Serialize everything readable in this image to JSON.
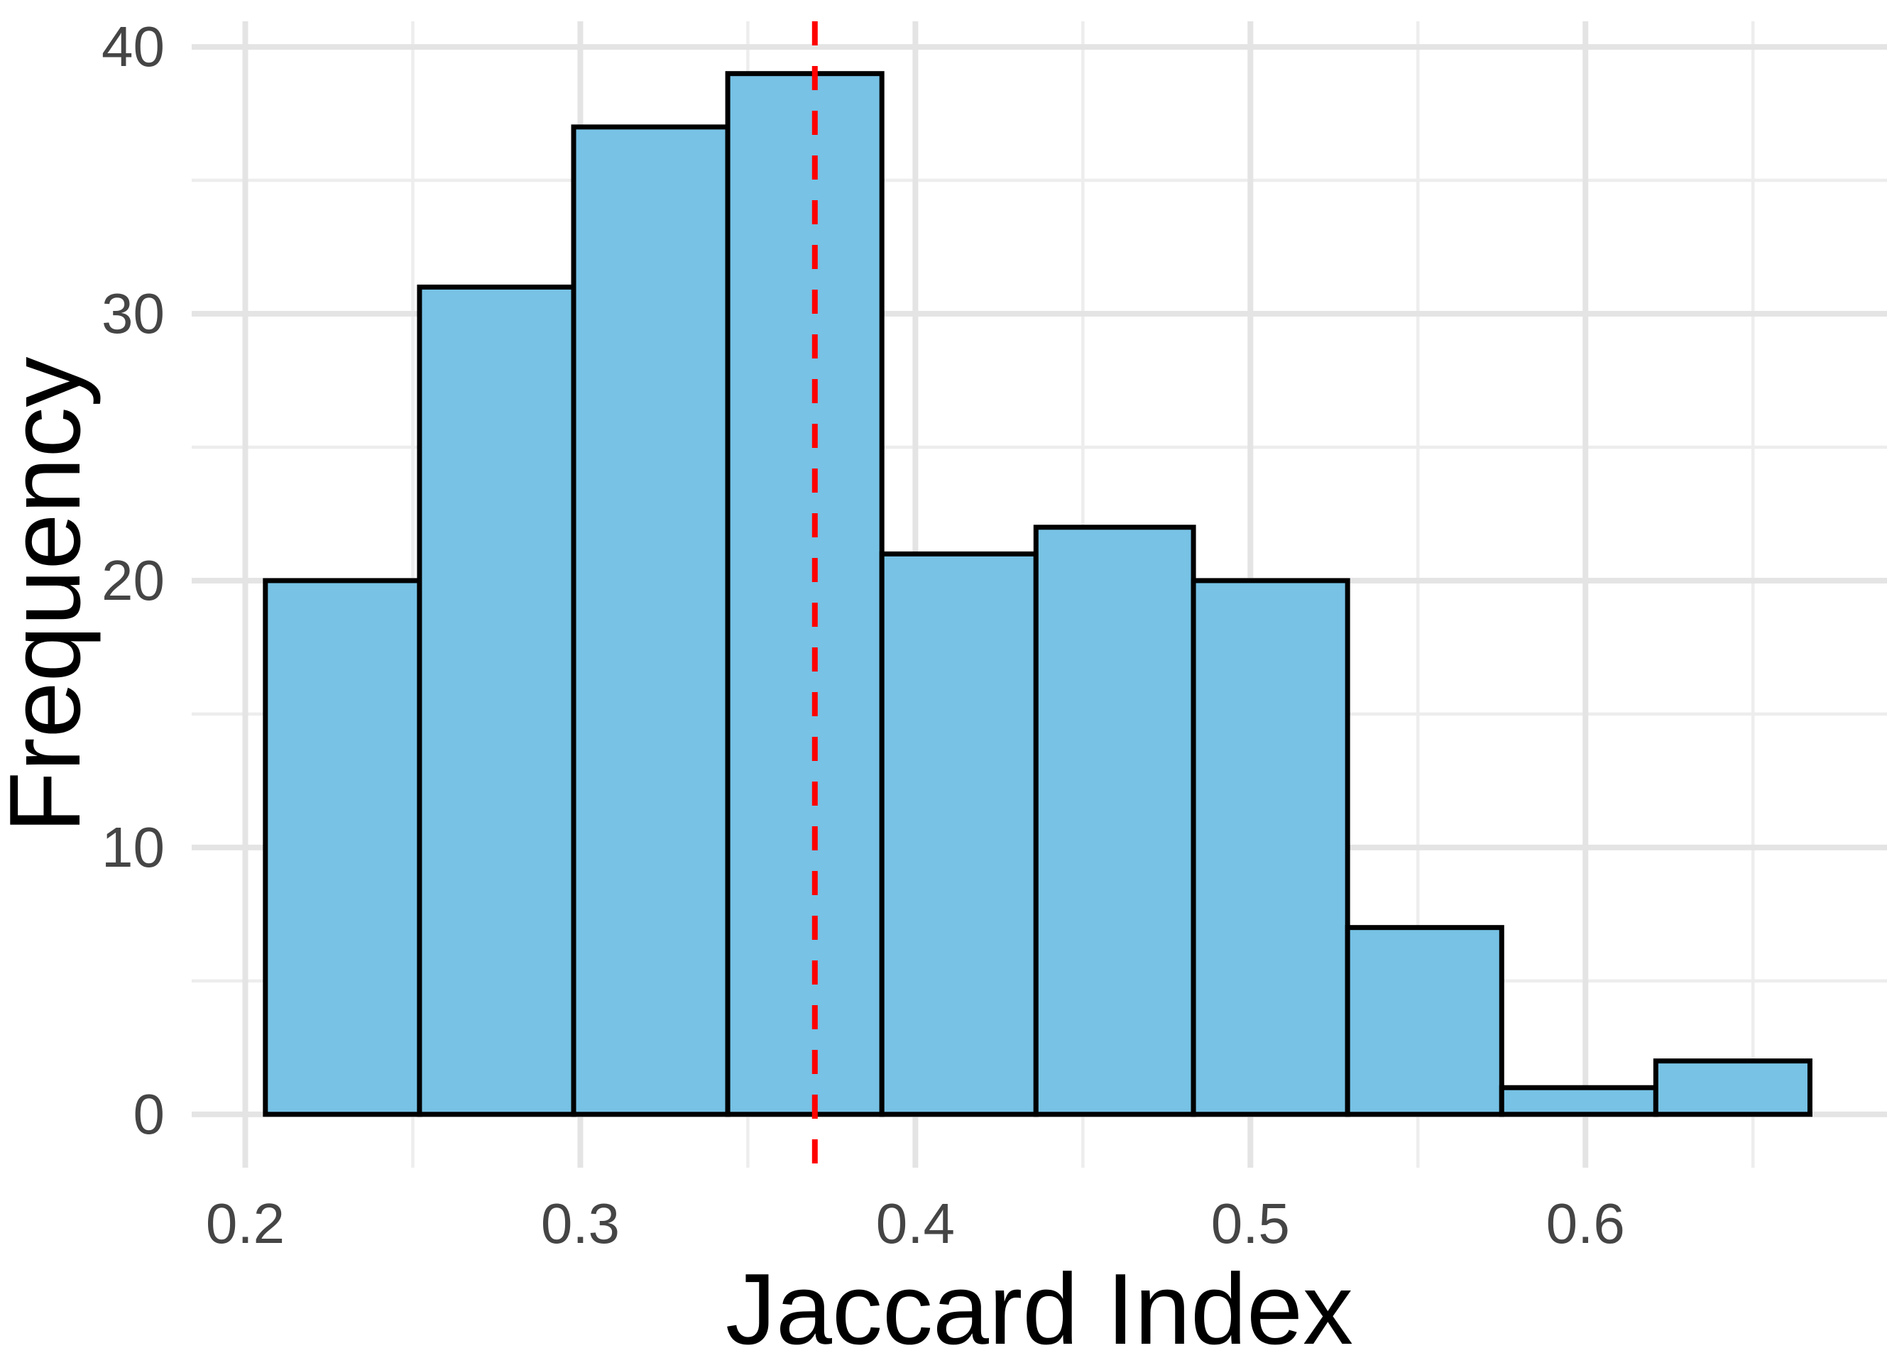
{
  "chart_data": {
    "type": "bar",
    "subtype": "histogram",
    "title": "",
    "xlabel": "Jaccard Index",
    "ylabel": "Frequency",
    "bin_edges": [
      0.206,
      0.252,
      0.298,
      0.344,
      0.39,
      0.436,
      0.483,
      0.529,
      0.575,
      0.621,
      0.667
    ],
    "counts": [
      20,
      31,
      37,
      39,
      21,
      22,
      20,
      7,
      1,
      2
    ],
    "x_ticks": [
      {
        "value": 0.2,
        "label": "0.2"
      },
      {
        "value": 0.3,
        "label": "0.3"
      },
      {
        "value": 0.4,
        "label": "0.4"
      },
      {
        "value": 0.5,
        "label": "0.5"
      },
      {
        "value": 0.6,
        "label": "0.6"
      }
    ],
    "x_minor_ticks": [
      0.25,
      0.35,
      0.45,
      0.55,
      0.65
    ],
    "y_ticks": [
      {
        "value": 0,
        "label": "0"
      },
      {
        "value": 10,
        "label": "10"
      },
      {
        "value": 20,
        "label": "20"
      },
      {
        "value": 30,
        "label": "30"
      },
      {
        "value": 40,
        "label": "40"
      }
    ],
    "y_minor_ticks": [
      5,
      15,
      25,
      35
    ],
    "xlim": [
      0.184,
      0.69
    ],
    "ylim": [
      -2,
      40.96
    ],
    "mean_line_x": 0.37,
    "grid": true,
    "legend": "none",
    "colors": {
      "bar_fill": "#77C2E5",
      "bar_stroke": "#000000",
      "mean_line": "#FF0000",
      "grid_major": "#E4E4E4",
      "grid_minor": "#EDEDED",
      "tick_text": "#454545",
      "title_text": "#000000",
      "background": "#FFFFFF"
    }
  }
}
